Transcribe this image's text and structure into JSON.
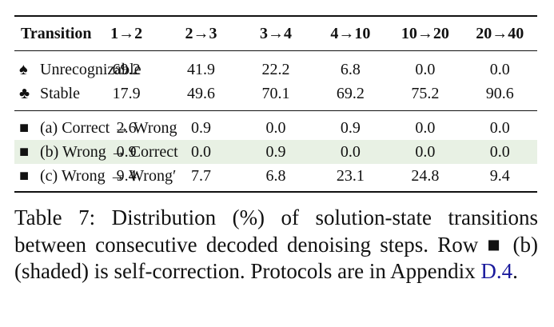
{
  "table": {
    "header": [
      "Transition",
      "1→2",
      "2→3",
      "3→4",
      "4→10",
      "10→20",
      "20→40"
    ],
    "groups": [
      {
        "rows": [
          {
            "symbol": "♠",
            "label": "Unrecognizable",
            "values": [
              "69.2",
              "41.9",
              "22.2",
              "6.8",
              "0.0",
              "0.0"
            ]
          },
          {
            "symbol": "♣",
            "label": "Stable",
            "values": [
              "17.9",
              "49.6",
              "70.1",
              "69.2",
              "75.2",
              "90.6"
            ]
          }
        ]
      },
      {
        "rows": [
          {
            "symbol": "■",
            "label": "(a) Correct → Wrong",
            "values": [
              "2.6",
              "0.9",
              "0.0",
              "0.9",
              "0.0",
              "0.0"
            ]
          },
          {
            "symbol": "■",
            "label": "(b) Wrong → Correct",
            "values": [
              "0.9",
              "0.0",
              "0.9",
              "0.0",
              "0.0",
              "0.0"
            ],
            "shaded": true
          },
          {
            "symbol": "■",
            "label": "(c) Wrong → Wrong′",
            "values": [
              "9.4",
              "7.7",
              "6.8",
              "23.1",
              "24.8",
              "9.4"
            ]
          }
        ]
      }
    ]
  },
  "caption": {
    "label": "Table 7:",
    "text": "Distribution (%) of solution-state transitions between consecutive decoded denoising steps. Row ■ (b) (shaded) is self-correction. Protocols are in Appendix",
    "link": "D.4",
    "end": "."
  }
}
